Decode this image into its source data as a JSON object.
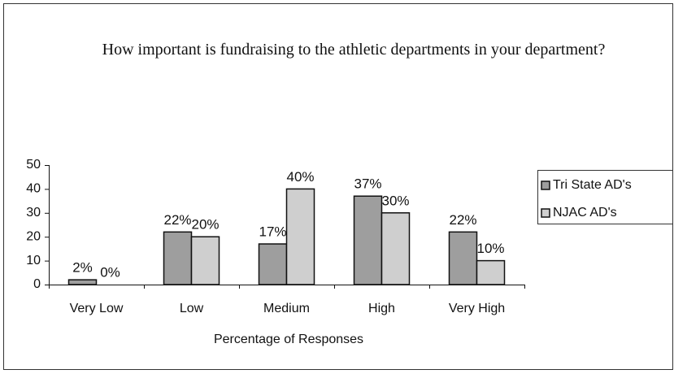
{
  "chart_data": {
    "type": "bar",
    "title": "How important is fundraising to the athletic departments in your department?",
    "x_label": "Percentage of Responses",
    "categories": [
      "Very Low",
      "Low",
      "Medium",
      "High",
      "Very High"
    ],
    "series": [
      {
        "name": "Tri State AD's",
        "color": "#9e9e9e",
        "values": [
          2,
          22,
          17,
          37,
          22
        ],
        "value_labels": [
          "2%",
          "22%",
          "17%",
          "37%",
          "22%"
        ]
      },
      {
        "name": "NJAC AD's",
        "color": "#cfcfcf",
        "values": [
          0,
          20,
          40,
          30,
          10
        ],
        "value_labels": [
          "0%",
          "20%",
          "40%",
          "30%",
          "10%"
        ]
      }
    ],
    "ylim": [
      0,
      50
    ],
    "yticks": [
      0,
      10,
      20,
      30,
      40,
      50
    ],
    "legend": "right"
  }
}
